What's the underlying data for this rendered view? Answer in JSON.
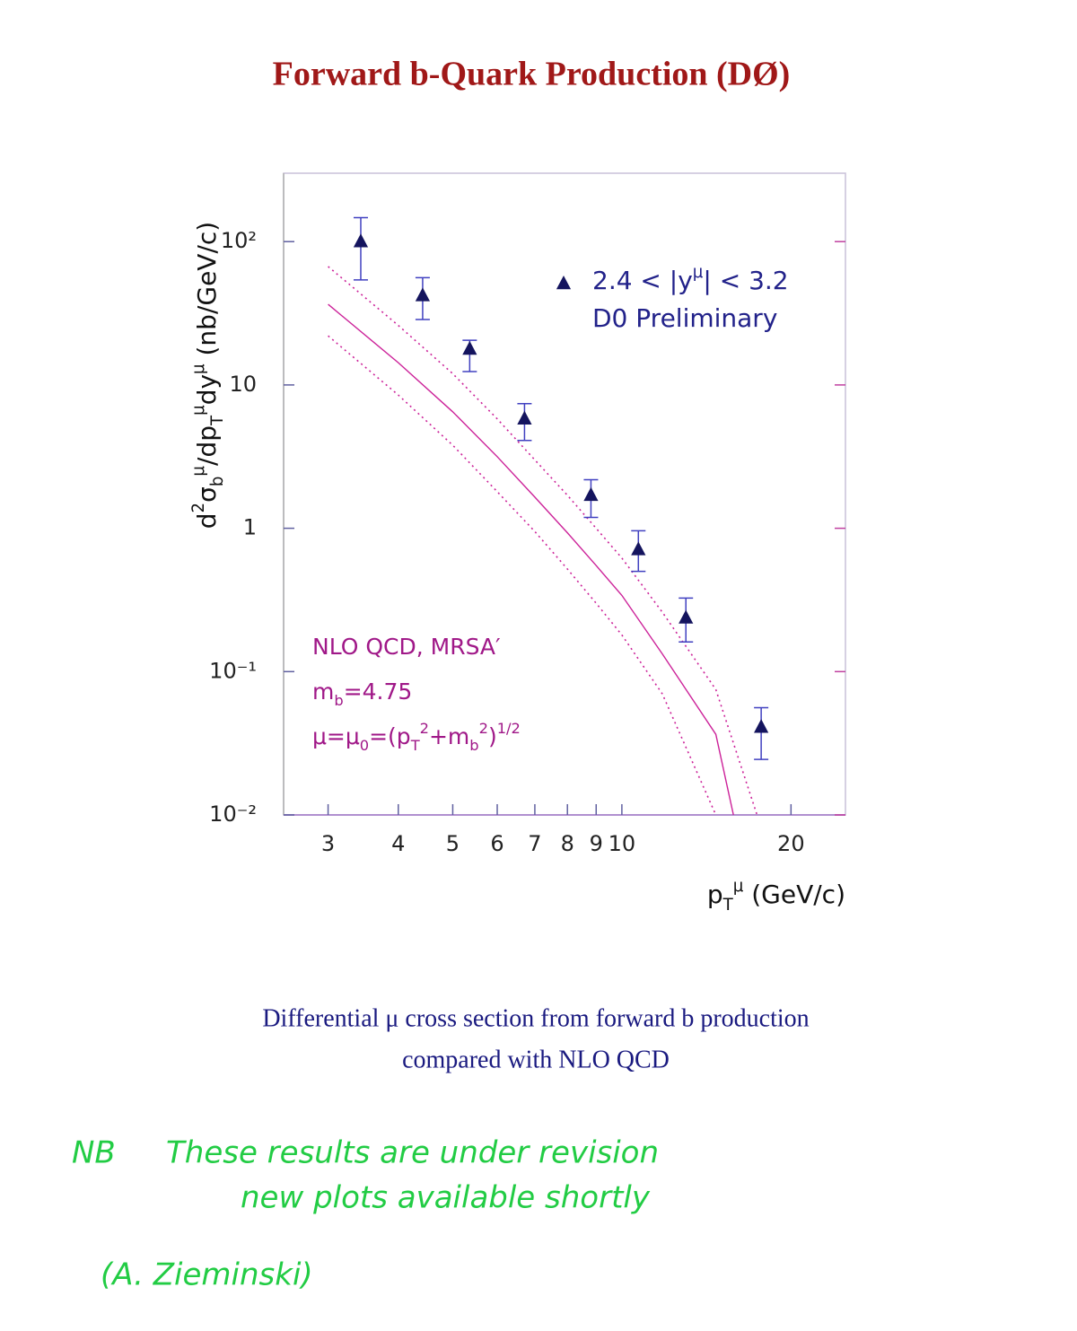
{
  "chart_data": {
    "type": "scatter",
    "title": "Forward b-Quark Production (DØ)",
    "caption": [
      "Differential μ cross section from forward b production",
      "compared with NLO QCD"
    ],
    "xlabel": "p_T^μ  (GeV/c)",
    "ylabel": "d^2σ_b^μ/dp_T^μdy^μ  (nb/GeV/c)",
    "xlog": true,
    "ylog": true,
    "xlim": [
      2.5,
      25
    ],
    "ylim": [
      0.01,
      300
    ],
    "xticks": [
      3,
      4,
      5,
      6,
      7,
      8,
      9,
      10,
      20
    ],
    "yticks": [
      {
        "value": 0.01,
        "label": "10⁻²"
      },
      {
        "value": 0.1,
        "label": "10⁻¹"
      },
      1,
      10,
      {
        "value": 100,
        "label": "10²"
      }
    ],
    "legend": "upper right",
    "series": [
      {
        "name": "2.4 < |y^μ| < 3.2",
        "color": "#14145e",
        "marker": "triangle",
        "x": [
          3.43,
          4.42,
          5.36,
          6.71,
          8.81,
          10.7,
          13.0,
          17.7
        ],
        "values": [
          100,
          42,
          17.8,
          5.8,
          1.7,
          0.71,
          0.237,
          0.041
        ],
        "y_upper": [
          147,
          56,
          20.5,
          7.4,
          2.18,
          0.96,
          0.326,
          0.056
        ],
        "y_lower": [
          54,
          28.6,
          12.4,
          4.1,
          1.19,
          0.5,
          0.161,
          0.0244
        ]
      }
    ],
    "curves": [
      {
        "color": "#cc2299",
        "dashed": false,
        "x": [
          3,
          4,
          5,
          6,
          7,
          8,
          9,
          10,
          11.8,
          14.7,
          15.8
        ],
        "values": [
          36.5,
          14.3,
          6.5,
          3.16,
          1.65,
          0.93,
          0.55,
          0.34,
          0.133,
          0.0365,
          0.01
        ]
      },
      {
        "color": "#cc2299",
        "dashed": true,
        "x": [
          3,
          4,
          5,
          6,
          7,
          8,
          9,
          10,
          11.8,
          14.7,
          17.4
        ],
        "values": [
          67,
          26,
          12,
          5.8,
          3.0,
          1.7,
          1.0,
          0.62,
          0.26,
          0.075,
          0.01
        ]
      },
      {
        "color": "#cc2299",
        "dashed": true,
        "x": [
          3,
          4,
          5,
          6,
          7,
          8,
          9,
          10,
          11.8,
          14.7
        ],
        "values": [
          22,
          8.5,
          3.8,
          1.8,
          0.95,
          0.52,
          0.3,
          0.18,
          0.07,
          0.01
        ]
      }
    ],
    "annotations": {
      "experiment": "D0 Preliminary",
      "theory": [
        "NLO QCD, MRSA′",
        "m_b=4.75",
        "μ=μ_0=(p_T^2+m_b^2)^{1/2}"
      ]
    },
    "notes": [
      "NB",
      "These results are under revision",
      "new plots available shortly",
      "(A. Zieminski)"
    ]
  }
}
